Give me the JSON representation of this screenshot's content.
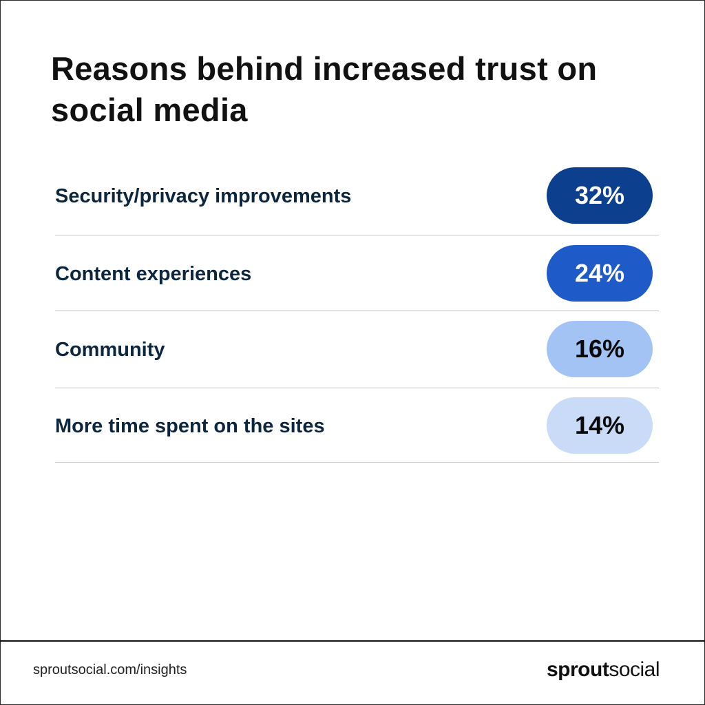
{
  "chart_data": {
    "type": "table",
    "title": "Reasons behind increased trust on social media",
    "categories": [
      "Security/privacy improvements",
      "Content experiences",
      "Community",
      "More time spent on the sites"
    ],
    "values": [
      32,
      24,
      16,
      14
    ],
    "value_labels": [
      "32%",
      "24%",
      "16%",
      "14%"
    ],
    "colors": [
      "#0d3f8f",
      "#1f5bc8",
      "#a4c3f5",
      "#c9dbf7"
    ],
    "text_colors": [
      "#ffffff",
      "#ffffff",
      "#0a0a0a",
      "#0a0a0a"
    ]
  },
  "footer": {
    "url": "sproutsocial.com/insights",
    "logo_bold": "sprout",
    "logo_light": "social"
  }
}
